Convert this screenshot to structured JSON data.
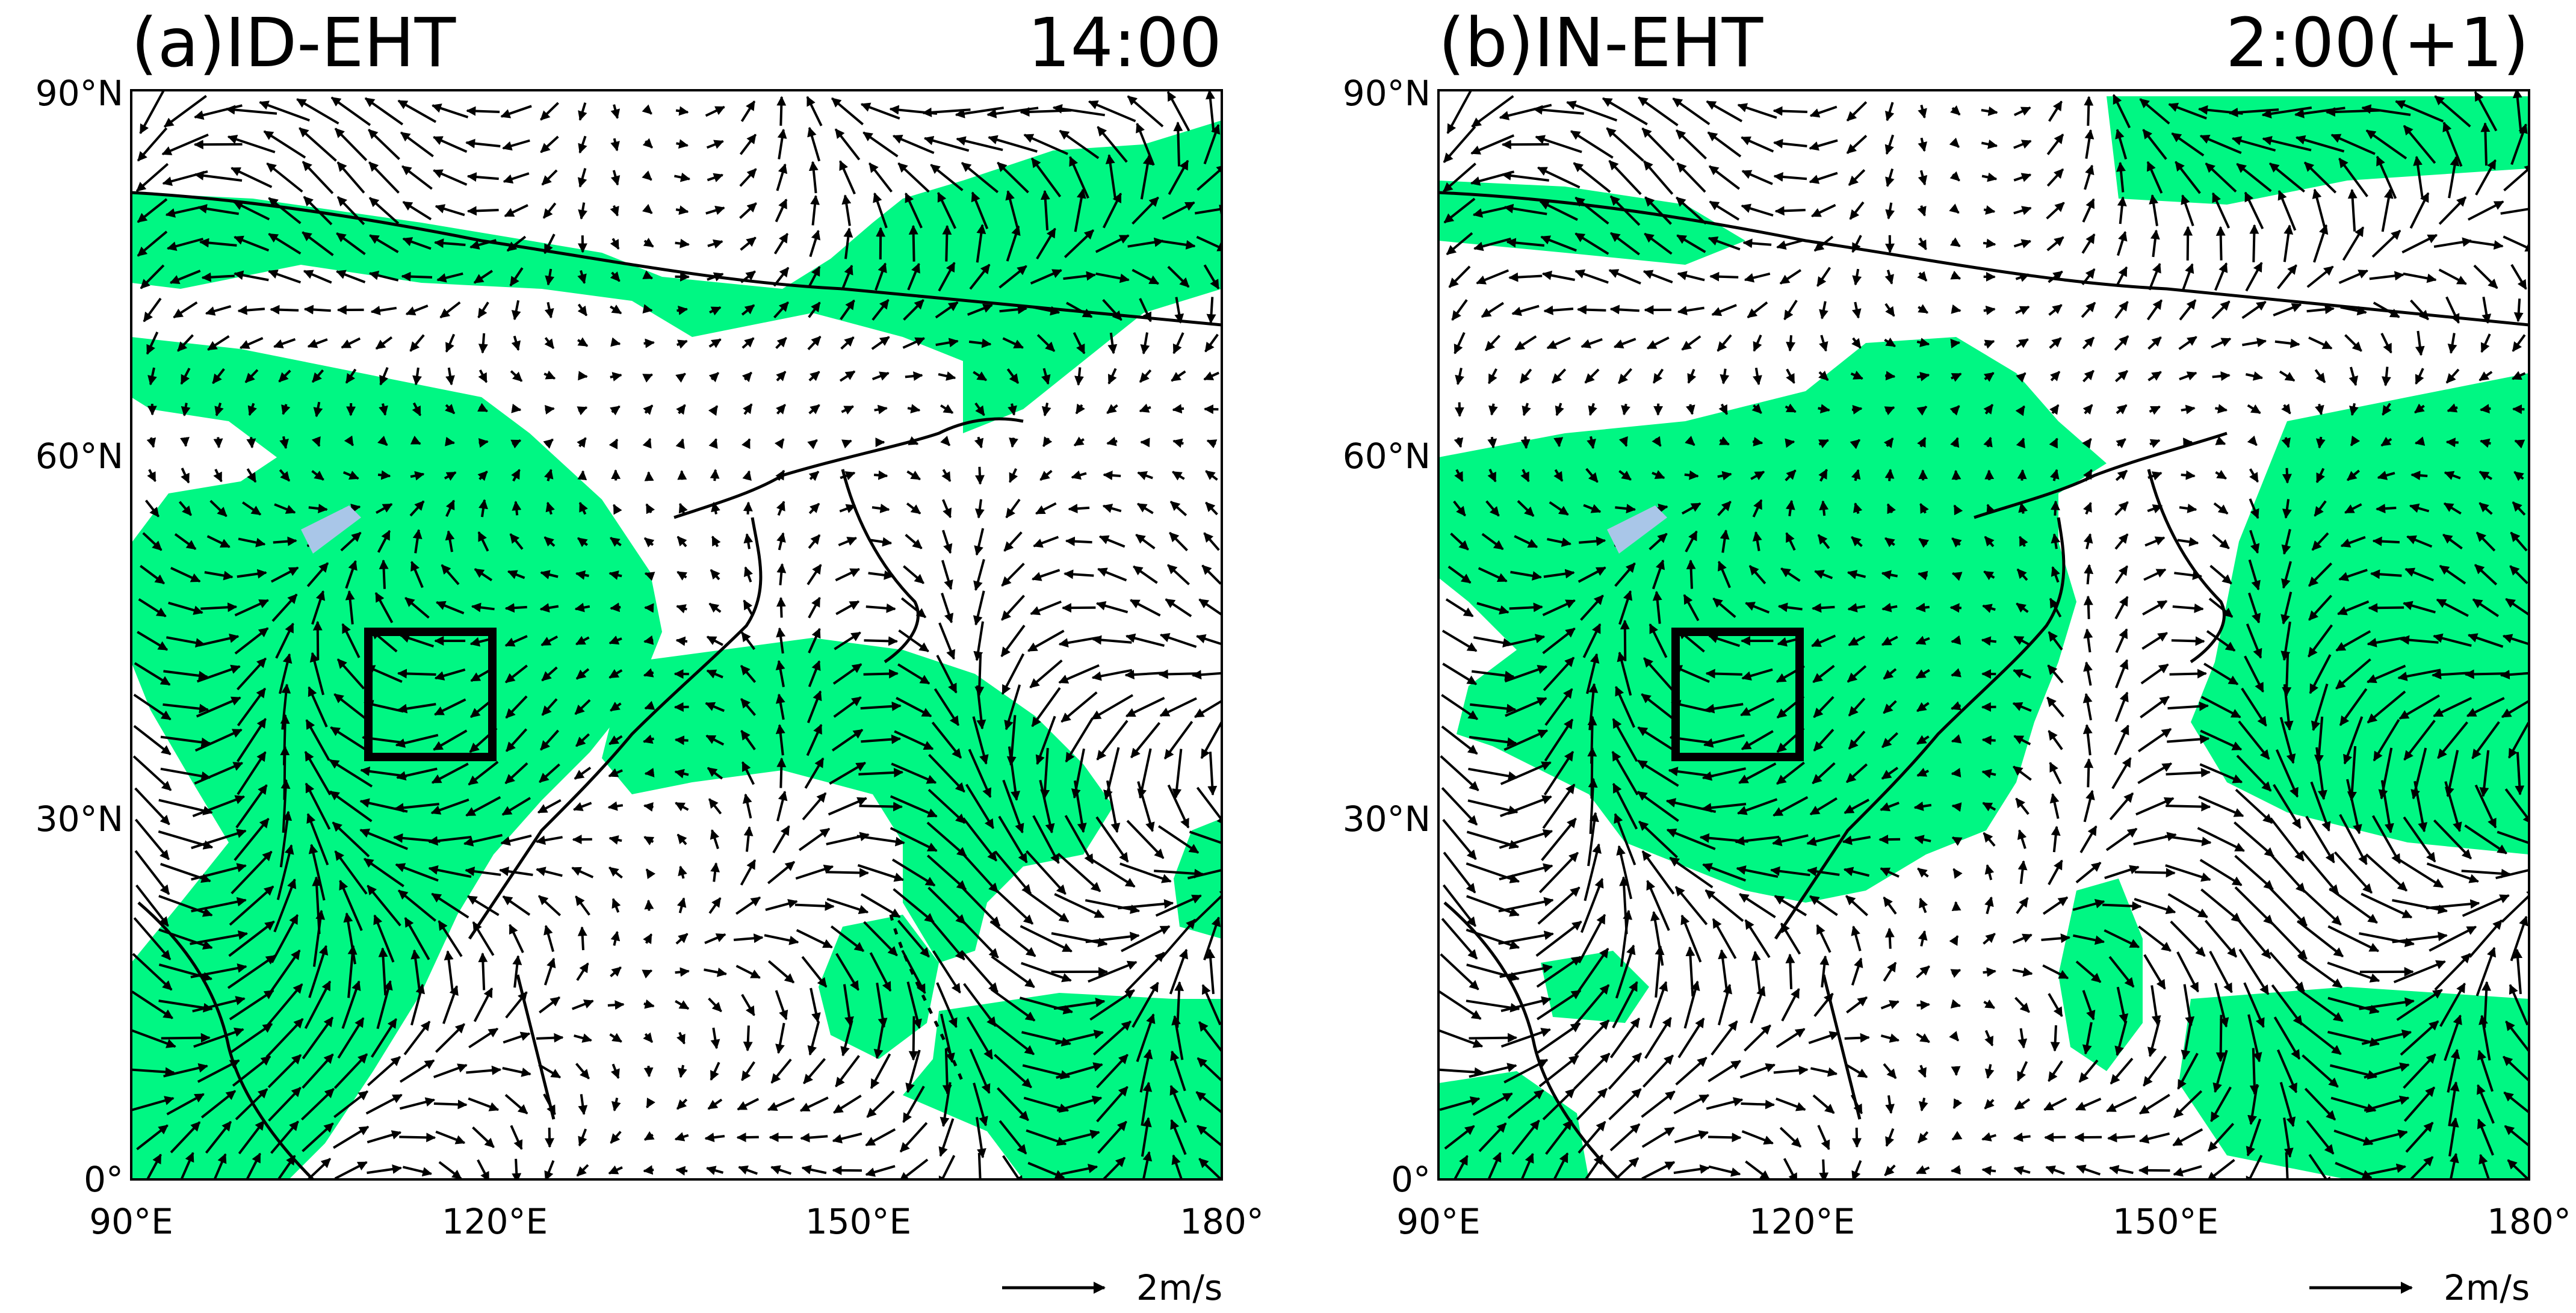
{
  "panels": [
    {
      "id": "a",
      "title": "(a)ID-EHT",
      "time": "14:00",
      "x_ticks": [
        "90°E",
        "120°E",
        "150°E",
        "180°"
      ],
      "y_ticks": [
        "90°N",
        "60°N",
        "30°N",
        "0°"
      ],
      "reference_vector_label": "2m/s"
    },
    {
      "id": "b",
      "title": "(b)IN-EHT",
      "time": "2:00(+1)",
      "x_ticks": [
        "90°E",
        "120°E",
        "150°E",
        "180°"
      ],
      "y_ticks": [
        "90°N",
        "60°N",
        "30°N",
        "0°"
      ],
      "reference_vector_label": "2m/s"
    }
  ],
  "map": {
    "lon_range": [
      90,
      180
    ],
    "lat_range": [
      0,
      90
    ],
    "shading_color": "#00f783",
    "box_region": {
      "lon": [
        110,
        120
      ],
      "lat": [
        35,
        45
      ]
    }
  }
}
